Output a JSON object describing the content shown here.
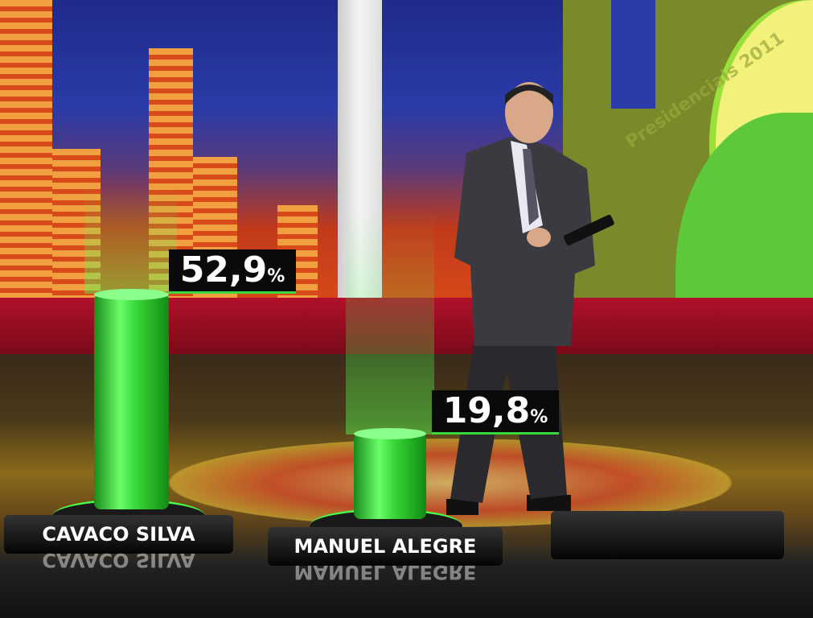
{
  "background": {
    "watermark_text": "Presidenciais 2011"
  },
  "colors": {
    "bar_green": "#3ad83a",
    "label_bg": "#0a0a0a",
    "backdrop_red": "#b0102a"
  },
  "results": [
    {
      "name": "CAVACO SILVA",
      "value": 52.9,
      "value_label": "52,9",
      "unit": "%"
    },
    {
      "name": "MANUEL ALEGRE",
      "value": 19.8,
      "value_label": "19,8",
      "unit": "%"
    }
  ],
  "empty_plate": ""
}
